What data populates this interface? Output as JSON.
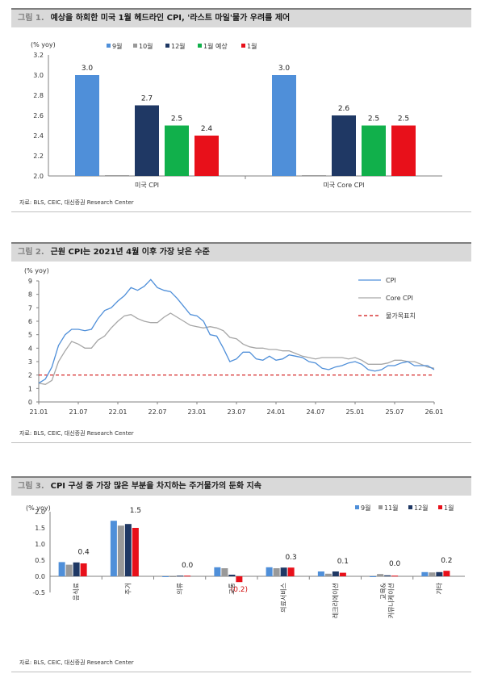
{
  "figures": [
    {
      "number": "그림 1.",
      "title": "예상을 하회한 미국 1월 헤드라인 CPI, '라스트 마일'물가 우려를 제어"
    },
    {
      "number": "그림 2.",
      "title": "근원 CPI는 2021년 4월 이후 가장 낮은 수준"
    },
    {
      "number": "그림 3.",
      "title": "CPI 구성 중 가장 많은 부분을 차지하는 주거물가의 둔화 지속"
    }
  ],
  "source": "자료: BLS, CEIC, 대신증권 Research Center",
  "colors": {
    "sep": "#4f8fd9",
    "oct": "#999999",
    "dec": "#1f3864",
    "forecast": "#11b04b",
    "jan": "#e8101a",
    "core": "#a6a6a6",
    "target": "#d01010"
  },
  "chart_data": [
    {
      "type": "bar",
      "unit_label": "(% yoy)",
      "categories": [
        "미국 CPI",
        "미국 Core CPI"
      ],
      "series": [
        {
          "name": "9월",
          "values": [
            3.0,
            3.0
          ]
        },
        {
          "name": "10월",
          "values": [
            null,
            null
          ]
        },
        {
          "name": "12월",
          "values": [
            2.7,
            2.6
          ]
        },
        {
          "name": "1월 예상",
          "values": [
            2.5,
            2.5
          ]
        },
        {
          "name": "1월",
          "values": [
            2.4,
            2.5
          ]
        }
      ],
      "data_labels": [
        [
          "3.0",
          "",
          "2.7",
          "2.5",
          "2.4"
        ],
        [
          "3.0",
          "",
          "2.6",
          "2.5",
          "2.5"
        ]
      ],
      "ylim": [
        2.0,
        3.2
      ],
      "yticks": [
        "2.0",
        "2.2",
        "2.4",
        "2.6",
        "2.8",
        "3.0",
        "3.2"
      ],
      "legend": "top",
      "grid": false
    },
    {
      "type": "line",
      "unit_label": "(% yoy)",
      "x_start": "21.01",
      "xticks": [
        "21.01",
        "21.07",
        "22.01",
        "22.07",
        "23.01",
        "23.07",
        "24.01",
        "24.07",
        "25.01",
        "25.07",
        "26.01"
      ],
      "yticks": [
        "0",
        "1",
        "2",
        "3",
        "4",
        "5",
        "6",
        "7",
        "8",
        "9"
      ],
      "ylim": [
        0,
        9
      ],
      "series": [
        {
          "name": "CPI",
          "values": [
            1.4,
            1.7,
            2.6,
            4.2,
            5.0,
            5.4,
            5.4,
            5.3,
            5.4,
            6.2,
            6.8,
            7.0,
            7.5,
            7.9,
            8.5,
            8.3,
            8.6,
            9.1,
            8.5,
            8.3,
            8.2,
            7.7,
            7.1,
            6.5,
            6.4,
            6.0,
            5.0,
            4.9,
            4.0,
            3.0,
            3.2,
            3.7,
            3.7,
            3.2,
            3.1,
            3.4,
            3.1,
            3.2,
            3.5,
            3.4,
            3.3,
            3.0,
            2.9,
            2.5,
            2.4,
            2.6,
            2.7,
            2.9,
            3.0,
            2.8,
            2.4,
            2.3,
            2.4,
            2.7,
            2.7,
            2.9,
            3.0,
            2.7,
            2.7,
            2.7,
            2.4
          ]
        },
        {
          "name": "Core CPI",
          "values": [
            1.4,
            1.3,
            1.6,
            3.0,
            3.8,
            4.5,
            4.3,
            4.0,
            4.0,
            4.6,
            4.9,
            5.5,
            6.0,
            6.4,
            6.5,
            6.2,
            6.0,
            5.9,
            5.9,
            6.3,
            6.6,
            6.3,
            6.0,
            5.7,
            5.6,
            5.5,
            5.6,
            5.5,
            5.3,
            4.8,
            4.7,
            4.3,
            4.1,
            4.0,
            4.0,
            3.9,
            3.9,
            3.8,
            3.8,
            3.6,
            3.4,
            3.3,
            3.2,
            3.3,
            3.3,
            3.3,
            3.3,
            3.2,
            3.3,
            3.1,
            2.8,
            2.8,
            2.8,
            2.9,
            3.1,
            3.1,
            3.0,
            3.0,
            2.8,
            2.6,
            2.5
          ]
        },
        {
          "name": "물가목표치",
          "values": [
            2.0
          ]
        }
      ],
      "legend": "right",
      "grid": false
    },
    {
      "type": "bar",
      "unit_label": "(% yoy)",
      "categories": [
        "음식료",
        "주거",
        "의류",
        "교통",
        "의료서비스",
        "레크리에이션",
        "교육&\n커뮤니케이션",
        "기타"
      ],
      "series": [
        {
          "name": "9월",
          "values": [
            0.44,
            1.72,
            0.0,
            0.28,
            0.28,
            0.15,
            0.0,
            0.13
          ]
        },
        {
          "name": "11월",
          "values": [
            0.36,
            1.57,
            0.0,
            0.25,
            0.25,
            0.08,
            0.07,
            0.12
          ]
        },
        {
          "name": "12월",
          "values": [
            0.43,
            1.62,
            0.02,
            0.05,
            0.27,
            0.15,
            0.03,
            0.13
          ]
        },
        {
          "name": "1월",
          "values": [
            0.4,
            1.5,
            0.02,
            -0.18,
            0.27,
            0.11,
            0.02,
            0.17
          ]
        }
      ],
      "data_labels": [
        "0.4",
        "1.5",
        "0.0",
        "(0.2)",
        "0.3",
        "0.1",
        "0.0",
        "0.2"
      ],
      "ylim": [
        -0.5,
        2.0
      ],
      "yticks": [
        "-0.5",
        "0.0",
        "0.5",
        "1.0",
        "1.5",
        "2.0"
      ],
      "legend": "top-right",
      "grid": false
    }
  ]
}
